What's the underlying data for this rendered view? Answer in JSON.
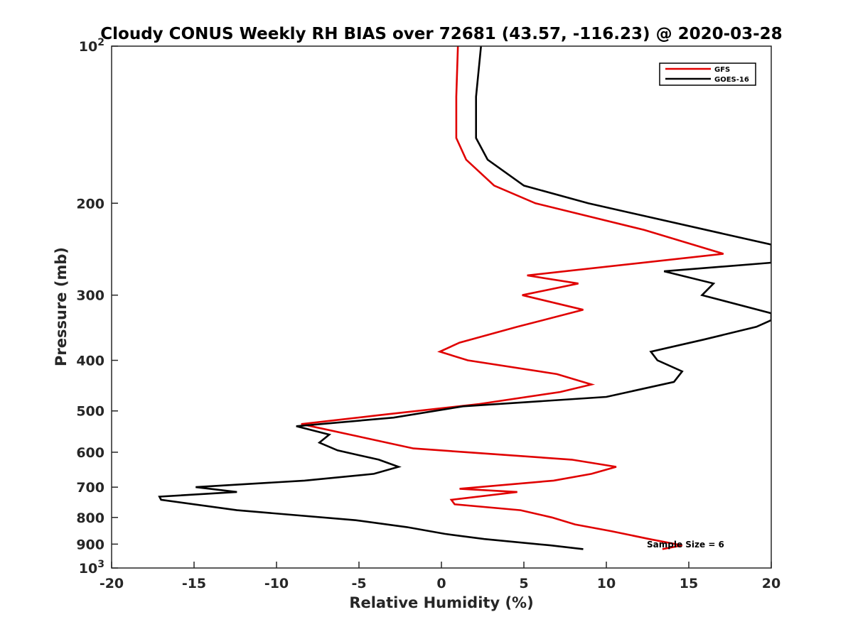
{
  "chart_data": {
    "type": "line",
    "title": "Cloudy CONUS Weekly RH BIAS over 72681 (43.57, -116.23) @ 2020-03-28",
    "xlabel": "Relative Humidity (%)",
    "ylabel": "Pressure (mb)",
    "xlim": [
      -20,
      20
    ],
    "ylim": [
      100,
      1000
    ],
    "yscale": "log",
    "y_reversed": true,
    "x_ticks": [
      -20,
      -15,
      -10,
      -5,
      0,
      5,
      10,
      15,
      20
    ],
    "x_tick_labels": [
      "-20",
      "-15",
      "-10",
      "-5",
      "0",
      "5",
      "10",
      "15",
      "20"
    ],
    "y_ticks": [
      200,
      300,
      400,
      500,
      600,
      700,
      800,
      900
    ],
    "y_tick_labels": [
      "200",
      "300",
      "400",
      "500",
      "600",
      "700",
      "800",
      "900"
    ],
    "y_edge_labels": [
      {
        "value": 100,
        "base": "10",
        "exp": "2"
      },
      {
        "value": 1000,
        "base": "10",
        "exp": "3"
      }
    ],
    "grid": false,
    "legend_position": "top-right",
    "annotation": "Sample Size = 6",
    "series": [
      {
        "name": "GFS",
        "color": "#e00000",
        "points": [
          [
            1.0,
            100
          ],
          [
            0.9,
            125
          ],
          [
            0.9,
            150
          ],
          [
            1.5,
            165
          ],
          [
            3.2,
            185
          ],
          [
            5.7,
            200
          ],
          [
            12.3,
            225
          ],
          [
            17.1,
            250
          ],
          [
            5.2,
            275
          ],
          [
            8.3,
            285
          ],
          [
            4.9,
            300
          ],
          [
            8.6,
            320
          ],
          [
            4.6,
            345
          ],
          [
            1.1,
            370
          ],
          [
            -0.1,
            385
          ],
          [
            1.6,
            400
          ],
          [
            7.0,
            425
          ],
          [
            9.1,
            445
          ],
          [
            7.2,
            460
          ],
          [
            2.3,
            485
          ],
          [
            -3.9,
            510
          ],
          [
            -8.5,
            530
          ],
          [
            -5.0,
            560
          ],
          [
            -1.7,
            590
          ],
          [
            7.9,
            620
          ],
          [
            10.6,
            640
          ],
          [
            9.1,
            660
          ],
          [
            6.8,
            680
          ],
          [
            1.1,
            705
          ],
          [
            4.6,
            715
          ],
          [
            0.6,
            740
          ],
          [
            0.8,
            755
          ],
          [
            4.8,
            775
          ],
          [
            6.7,
            800
          ],
          [
            8.1,
            825
          ],
          [
            10.3,
            850
          ],
          [
            12.6,
            880
          ],
          [
            14.6,
            905
          ],
          [
            13.4,
            920
          ]
        ]
      },
      {
        "name": "GOES-16",
        "color": "#000000",
        "points": [
          [
            2.4,
            100
          ],
          [
            2.1,
            125
          ],
          [
            2.1,
            150
          ],
          [
            2.8,
            165
          ],
          [
            5.0,
            185
          ],
          [
            8.9,
            200
          ],
          [
            20.0,
            240
          ],
          [
            20.0,
            260
          ],
          [
            13.5,
            270
          ],
          [
            16.5,
            285
          ],
          [
            15.8,
            300
          ],
          [
            20.0,
            325
          ],
          [
            20.0,
            335
          ],
          [
            19.1,
            345
          ],
          [
            15.9,
            365
          ],
          [
            12.7,
            385
          ],
          [
            13.1,
            400
          ],
          [
            14.6,
            420
          ],
          [
            14.1,
            440
          ],
          [
            10.0,
            470
          ],
          [
            1.3,
            490
          ],
          [
            -2.9,
            515
          ],
          [
            -8.8,
            535
          ],
          [
            -6.8,
            555
          ],
          [
            -7.4,
            575
          ],
          [
            -6.3,
            595
          ],
          [
            -3.8,
            620
          ],
          [
            -2.6,
            640
          ],
          [
            -4.1,
            660
          ],
          [
            -8.3,
            680
          ],
          [
            -14.9,
            700
          ],
          [
            -12.4,
            715
          ],
          [
            -17.1,
            730
          ],
          [
            -17.0,
            740
          ],
          [
            -12.4,
            775
          ],
          [
            -5.2,
            810
          ],
          [
            -2.1,
            835
          ],
          [
            0.2,
            860
          ],
          [
            2.6,
            880
          ],
          [
            6.6,
            905
          ],
          [
            8.6,
            920
          ]
        ]
      }
    ]
  }
}
